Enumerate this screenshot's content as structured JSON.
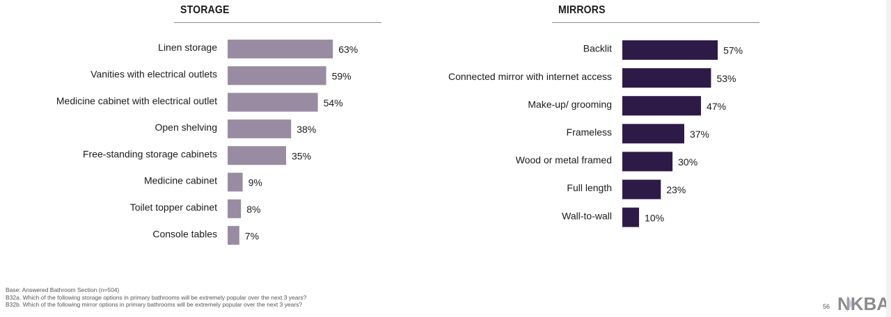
{
  "storage": {
    "title": "STORAGE"
  },
  "mirrors": {
    "title": "MIRRORS"
  },
  "chart_data": [
    {
      "type": "bar",
      "orientation": "horizontal",
      "title": "STORAGE",
      "categories": [
        "Linen storage",
        "Vanities with electrical outlets",
        "Medicine cabinet with electrical outlet",
        "Open shelving",
        "Free-standing storage cabinets",
        "Medicine cabinet",
        "Toilet topper cabinet",
        "Console tables"
      ],
      "values": [
        63,
        59,
        54,
        38,
        35,
        9,
        8,
        7
      ],
      "value_labels": [
        "63%",
        "59%",
        "54%",
        "38%",
        "35%",
        "9%",
        "8%",
        "7%"
      ],
      "unit": "%",
      "xlim": [
        0,
        100
      ],
      "grid": false,
      "bar_color": "#998ca2"
    },
    {
      "type": "bar",
      "orientation": "horizontal",
      "title": "MIRRORS",
      "categories": [
        "Backlit",
        "Connected mirror with internet access",
        "Make-up/ grooming",
        "Frameless",
        "Wood or metal framed",
        "Full length",
        "Wall-to-wall"
      ],
      "values": [
        57,
        53,
        47,
        37,
        30,
        23,
        10
      ],
      "value_labels": [
        "57%",
        "53%",
        "47%",
        "37%",
        "30%",
        "23%",
        "10%"
      ],
      "unit": "%",
      "xlim": [
        0,
        100
      ],
      "grid": false,
      "bar_color": "#2e1a47"
    }
  ],
  "footer": {
    "base": "Base:  Answered Bathroom Section (n=504)",
    "q1": "B32a. Which of the following storage options in primary bathrooms will be extremely popular over the next 3 years?",
    "q2": "B32b. Which of the following mirror options in primary bathrooms will be extremely popular over the next 3 years?"
  },
  "page_number": "56",
  "logo_text": "NKBA",
  "logo_icon": "nkba-logo"
}
